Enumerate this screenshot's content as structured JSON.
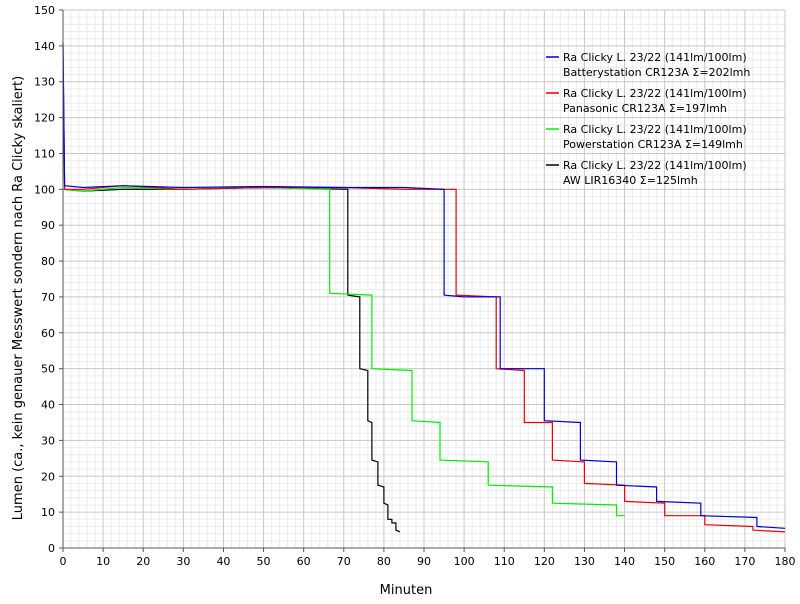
{
  "chart_data": {
    "type": "line",
    "xlabel": "Minuten",
    "ylabel": "Lumen (ca., kein genauer Messwert sondern nach Ra Clicky skaliert)",
    "xlim": [
      0,
      180
    ],
    "ylim": [
      0,
      150
    ],
    "x_ticks": [
      0,
      10,
      20,
      30,
      40,
      50,
      60,
      70,
      80,
      90,
      100,
      110,
      120,
      130,
      140,
      150,
      160,
      170,
      180
    ],
    "y_ticks": [
      0,
      10,
      20,
      30,
      40,
      50,
      60,
      70,
      80,
      90,
      100,
      110,
      120,
      130,
      140,
      150
    ],
    "grid": true,
    "legend_position": "top-right",
    "series": [
      {
        "name_line1": "Ra Clicky L. 23/22 (141lm/100lm)",
        "name_line2": "Batterystation CR123A  Σ=202lmh",
        "color": "#0000cc",
        "points": [
          [
            0,
            141
          ],
          [
            0.4,
            101
          ],
          [
            5,
            100.5
          ],
          [
            15,
            101
          ],
          [
            30,
            100.5
          ],
          [
            50,
            100.8
          ],
          [
            70,
            100.5
          ],
          [
            85,
            100.5
          ],
          [
            95,
            100
          ],
          [
            95,
            70.5
          ],
          [
            100,
            70
          ],
          [
            109,
            70
          ],
          [
            109,
            50
          ],
          [
            120,
            50
          ],
          [
            120,
            35.5
          ],
          [
            129,
            35
          ],
          [
            129,
            24.5
          ],
          [
            138,
            24
          ],
          [
            138,
            17.5
          ],
          [
            148,
            17
          ],
          [
            148,
            13
          ],
          [
            159,
            12.5
          ],
          [
            159,
            9
          ],
          [
            173,
            8.5
          ],
          [
            173,
            6
          ],
          [
            180,
            5.5
          ]
        ]
      },
      {
        "name_line1": "Ra Clicky L. 23/22 (141lm/100lm)",
        "name_line2": "Panasonic CR123A  Σ=197lmh",
        "color": "#ee0000",
        "points": [
          [
            0,
            140
          ],
          [
            0.4,
            100
          ],
          [
            5,
            100
          ],
          [
            15,
            101
          ],
          [
            30,
            100
          ],
          [
            50,
            100.5
          ],
          [
            70,
            100.5
          ],
          [
            85,
            100
          ],
          [
            98,
            100
          ],
          [
            98,
            70.5
          ],
          [
            108,
            70
          ],
          [
            108,
            50
          ],
          [
            115,
            49.5
          ],
          [
            115,
            35
          ],
          [
            122,
            35
          ],
          [
            122,
            24.5
          ],
          [
            130,
            24
          ],
          [
            130,
            18
          ],
          [
            140,
            17.5
          ],
          [
            140,
            13
          ],
          [
            150,
            12.5
          ],
          [
            150,
            9
          ],
          [
            160,
            9
          ],
          [
            160,
            6.5
          ],
          [
            172,
            6
          ],
          [
            172,
            5
          ],
          [
            180,
            4.5
          ]
        ]
      },
      {
        "name_line1": "Ra Clicky L. 23/22 (141lm/100lm)",
        "name_line2": "Powerstation CR123A  Σ=149lmh",
        "color": "#00ee00",
        "points": [
          [
            0,
            100
          ],
          [
            5,
            99.5
          ],
          [
            15,
            100.5
          ],
          [
            30,
            100
          ],
          [
            50,
            100.5
          ],
          [
            66.5,
            100
          ],
          [
            66.5,
            71
          ],
          [
            77,
            70.5
          ],
          [
            77,
            50
          ],
          [
            87,
            49.5
          ],
          [
            87,
            35.5
          ],
          [
            94,
            35
          ],
          [
            94,
            24.5
          ],
          [
            106,
            24
          ],
          [
            106,
            17.5
          ],
          [
            122,
            17
          ],
          [
            122,
            12.5
          ],
          [
            138,
            12
          ],
          [
            138,
            9
          ],
          [
            140,
            9
          ]
        ]
      },
      {
        "name_line1": "Ra Clicky L. 23/22 (141lm/100lm)",
        "name_line2": "AW LIR16340  Σ=125lmh",
        "color": "#000000",
        "points": [
          [
            0,
            100
          ],
          [
            5,
            99.5
          ],
          [
            15,
            100
          ],
          [
            30,
            100
          ],
          [
            50,
            100.5
          ],
          [
            71,
            100
          ],
          [
            71,
            70.5
          ],
          [
            74,
            70
          ],
          [
            74,
            50
          ],
          [
            76,
            49.5
          ],
          [
            76,
            35.5
          ],
          [
            77,
            35
          ],
          [
            77,
            24.5
          ],
          [
            78.5,
            24
          ],
          [
            78.5,
            17.5
          ],
          [
            80,
            17
          ],
          [
            80,
            12.5
          ],
          [
            81,
            12
          ],
          [
            81,
            8
          ],
          [
            82,
            8
          ],
          [
            82,
            7
          ],
          [
            83,
            7
          ],
          [
            83,
            5
          ],
          [
            84,
            4.5
          ]
        ]
      }
    ]
  }
}
